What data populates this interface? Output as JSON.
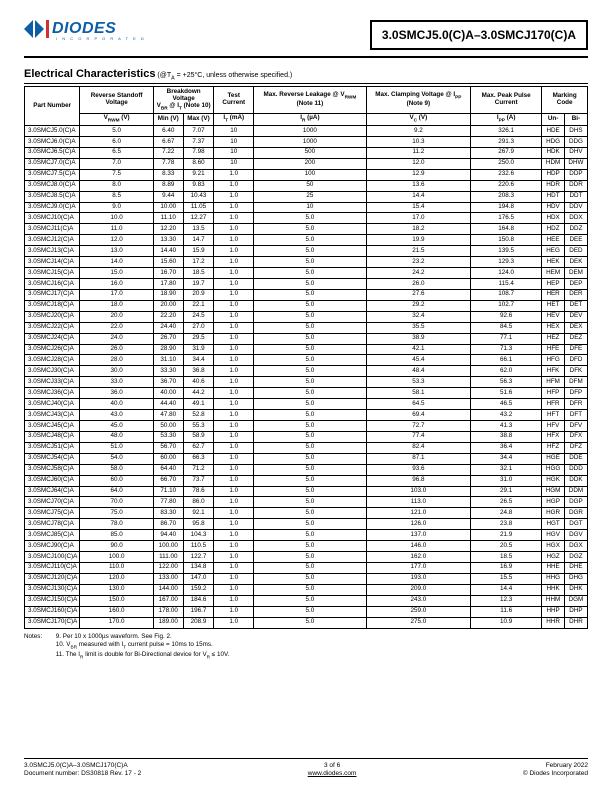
{
  "header": {
    "logo_text": "DIODES",
    "logo_sub": "I N C O R P O R A T E D",
    "logo_color": "#0d5ea6",
    "title_box": "3.0SMCJ5.0(C)A–3.0SMCJ170(C)A"
  },
  "section": {
    "title": "Electrical Characteristics",
    "condition": " (@T",
    "condition_sub": "A",
    "condition_rest": " = +25°C, unless otherwise specified.)"
  },
  "columns_r1": [
    "Part Number",
    "Reverse Standoff Voltage",
    "Breakdown Voltage",
    "V<sub>BR</sub> @ I<sub>T</sub> (Note 10)",
    "Test Current",
    "Max. Reverse Leakage @ V<sub>RWM</sub> (Note 11)",
    "Max. Clamping Voltage @ I<sub>PP</sub> (Note 9)",
    "Max. Peak Pulse Current",
    "Marking Code"
  ],
  "columns_r2": [
    "V<sub>RWM</sub> (V)",
    "Min (V)",
    "Max (V)",
    "I<sub>T</sub> (mA)",
    "I<sub>R</sub> (µA)",
    "V<sub>C</sub> (V)",
    "I<sub>PP</sub> (A)",
    "Un-",
    "Bi-"
  ],
  "rows": [
    [
      "3.0SMCJ5.0(C)A",
      "5.0",
      "6.40",
      "7.07",
      "10",
      "1000",
      "9.2",
      "326.1",
      "HDE",
      "DHS"
    ],
    [
      "3.0SMCJ6.0(C)A",
      "6.0",
      "6.67",
      "7.37",
      "10",
      "1000",
      "10.3",
      "291.3",
      "HDG",
      "DDG"
    ],
    [
      "3.0SMCJ6.5(C)A",
      "6.5",
      "7.22",
      "7.98",
      "10",
      "500",
      "11.2",
      "267.9",
      "HDK",
      "DHV"
    ],
    [
      "3.0SMCJ7.0(C)A",
      "7.0",
      "7.78",
      "8.60",
      "10",
      "200",
      "12.0",
      "250.0",
      "HDM",
      "DHW"
    ],
    [
      "3.0SMCJ7.5(C)A",
      "7.5",
      "8.33",
      "9.21",
      "1.0",
      "100",
      "12.9",
      "232.6",
      "HDP",
      "DDP"
    ],
    [
      "3.0SMCJ8.0(C)A",
      "8.0",
      "8.89",
      "9.83",
      "1.0",
      "50",
      "13.6",
      "220.6",
      "HDR",
      "DDR"
    ],
    [
      "3.0SMCJ8.5(C)A",
      "8.5",
      "9.44",
      "10.43",
      "1.0",
      "25",
      "14.4",
      "208.3",
      "HDT",
      "DDT"
    ],
    [
      "3.0SMCJ9.0(C)A",
      "9.0",
      "10.00",
      "11.05",
      "1.0",
      "10",
      "15.4",
      "194.8",
      "HDV",
      "DDV"
    ],
    [
      "3.0SMCJ10(C)A",
      "10.0",
      "11.10",
      "12.27",
      "1.0",
      "5.0",
      "17.0",
      "176.5",
      "HDX",
      "DDX"
    ],
    [
      "3.0SMCJ11(C)A",
      "11.0",
      "12.20",
      "13.5",
      "1.0",
      "5.0",
      "18.2",
      "164.8",
      "HDZ",
      "DDZ"
    ],
    [
      "3.0SMCJ12(C)A",
      "12.0",
      "13.30",
      "14.7",
      "1.0",
      "5.0",
      "19.9",
      "150.8",
      "HEE",
      "DEE"
    ],
    [
      "3.0SMCJ13(C)A",
      "13.0",
      "14.40",
      "15.9",
      "1.0",
      "5.0",
      "21.5",
      "139.5",
      "HEG",
      "DED"
    ],
    [
      "3.0SMCJ14(C)A",
      "14.0",
      "15.60",
      "17.2",
      "1.0",
      "5.0",
      "23.2",
      "129.3",
      "HEK",
      "DEK"
    ],
    [
      "3.0SMCJ15(C)A",
      "15.0",
      "16.70",
      "18.5",
      "1.0",
      "5.0",
      "24.2",
      "124.0",
      "HEM",
      "DEM"
    ],
    [
      "3.0SMCJ16(C)A",
      "16.0",
      "17.80",
      "19.7",
      "1.0",
      "5.0",
      "26.0",
      "115.4",
      "HEP",
      "DEP"
    ],
    [
      "3.0SMCJ17(C)A",
      "17.0",
      "18.90",
      "20.9",
      "1.0",
      "5.0",
      "27.6",
      "108.7",
      "HER",
      "DER"
    ],
    [
      "3.0SMCJ18(C)A",
      "18.0",
      "20.00",
      "22.1",
      "1.0",
      "5.0",
      "29.2",
      "102.7",
      "HET",
      "DET"
    ],
    [
      "3.0SMCJ20(C)A",
      "20.0",
      "22.20",
      "24.5",
      "1.0",
      "5.0",
      "32.4",
      "92.6",
      "HEV",
      "DEV"
    ],
    [
      "3.0SMCJ22(C)A",
      "22.0",
      "24.40",
      "27.0",
      "1.0",
      "5.0",
      "35.5",
      "84.5",
      "HEX",
      "DEX"
    ],
    [
      "3.0SMCJ24(C)A",
      "24.0",
      "26.70",
      "29.5",
      "1.0",
      "5.0",
      "38.9",
      "77.1",
      "HEZ",
      "DEZ"
    ],
    [
      "3.0SMCJ26(C)A",
      "26.0",
      "28.90",
      "31.9",
      "1.0",
      "5.0",
      "42.1",
      "71.3",
      "HFE",
      "DFE"
    ],
    [
      "3.0SMCJ28(C)A",
      "28.0",
      "31.10",
      "34.4",
      "1.0",
      "5.0",
      "45.4",
      "66.1",
      "HFG",
      "DFD"
    ],
    [
      "3.0SMCJ30(C)A",
      "30.0",
      "33.30",
      "36.8",
      "1.0",
      "5.0",
      "48.4",
      "62.0",
      "HFK",
      "DFK"
    ],
    [
      "3.0SMCJ33(C)A",
      "33.0",
      "36.70",
      "40.6",
      "1.0",
      "5.0",
      "53.3",
      "56.3",
      "HFM",
      "DFM"
    ],
    [
      "3.0SMCJ36(C)A",
      "36.0",
      "40.00",
      "44.2",
      "1.0",
      "5.0",
      "58.1",
      "51.6",
      "HFP",
      "DFP"
    ],
    [
      "3.0SMCJ40(C)A",
      "40.0",
      "44.40",
      "49.1",
      "1.0",
      "5.0",
      "64.5",
      "46.5",
      "HFR",
      "DFR"
    ],
    [
      "3.0SMCJ43(C)A",
      "43.0",
      "47.80",
      "52.8",
      "1.0",
      "5.0",
      "69.4",
      "43.2",
      "HFT",
      "DFT"
    ],
    [
      "3.0SMCJ45(C)A",
      "45.0",
      "50.00",
      "55.3",
      "1.0",
      "5.0",
      "72.7",
      "41.3",
      "HFV",
      "DFV"
    ],
    [
      "3.0SMCJ48(C)A",
      "48.0",
      "53.30",
      "58.9",
      "1.0",
      "5.0",
      "77.4",
      "38.8",
      "HFX",
      "DFX"
    ],
    [
      "3.0SMCJ51(C)A",
      "51.0",
      "56.70",
      "62.7",
      "1.0",
      "5.0",
      "82.4",
      "36.4",
      "HFZ",
      "DFZ"
    ],
    [
      "3.0SMCJ54(C)A",
      "54.0",
      "60.00",
      "66.3",
      "1.0",
      "5.0",
      "87.1",
      "34.4",
      "HGE",
      "DDE"
    ],
    [
      "3.0SMCJ58(C)A",
      "58.0",
      "64.40",
      "71.2",
      "1.0",
      "5.0",
      "93.6",
      "32.1",
      "HGG",
      "DDD"
    ],
    [
      "3.0SMCJ60(C)A",
      "60.0",
      "66.70",
      "73.7",
      "1.0",
      "5.0",
      "96.8",
      "31.0",
      "HGK",
      "DDK"
    ],
    [
      "3.0SMCJ64(C)A",
      "64.0",
      "71.10",
      "78.6",
      "1.0",
      "5.0",
      "103.0",
      "29.1",
      "HGM",
      "DDM"
    ],
    [
      "3.0SMCJ70(C)A",
      "70.0",
      "77.80",
      "86.0",
      "1.0",
      "5.0",
      "113.0",
      "26.5",
      "HGP",
      "DGP"
    ],
    [
      "3.0SMCJ75(C)A",
      "75.0",
      "83.30",
      "92.1",
      "1.0",
      "5.0",
      "121.0",
      "24.8",
      "HGR",
      "DGR"
    ],
    [
      "3.0SMCJ78(C)A",
      "78.0",
      "86.70",
      "95.8",
      "1.0",
      "5.0",
      "126.0",
      "23.8",
      "HGT",
      "DGT"
    ],
    [
      "3.0SMCJ85(C)A",
      "85.0",
      "94.40",
      "104.3",
      "1.0",
      "5.0",
      "137.0",
      "21.9",
      "HGV",
      "DGV"
    ],
    [
      "3.0SMCJ90(C)A",
      "90.0",
      "100.00",
      "110.5",
      "1.0",
      "5.0",
      "146.0",
      "20.5",
      "HGX",
      "DGX"
    ],
    [
      "3.0SMCJ100(C)A",
      "100.0",
      "111.00",
      "122.7",
      "1.0",
      "5.0",
      "162.0",
      "18.5",
      "HGZ",
      "DGZ"
    ],
    [
      "3.0SMCJ110(C)A",
      "110.0",
      "122.00",
      "134.8",
      "1.0",
      "5.0",
      "177.0",
      "16.9",
      "HHE",
      "DHE"
    ],
    [
      "3.0SMCJ120(C)A",
      "120.0",
      "133.00",
      "147.0",
      "1.0",
      "5.0",
      "193.0",
      "15.5",
      "HHG",
      "DHG"
    ],
    [
      "3.0SMCJ130(C)A",
      "130.0",
      "144.00",
      "159.2",
      "1.0",
      "5.0",
      "209.0",
      "14.4",
      "HHK",
      "DHK"
    ],
    [
      "3.0SMCJ150(C)A",
      "150.0",
      "167.00",
      "184.6",
      "1.0",
      "5.0",
      "243.0",
      "12.3",
      "HHM",
      "DGM"
    ],
    [
      "3.0SMCJ160(C)A",
      "160.0",
      "178.00",
      "196.7",
      "1.0",
      "5.0",
      "259.0",
      "11.6",
      "HHP",
      "DHP"
    ],
    [
      "3.0SMCJ170(C)A",
      "170.0",
      "189.00",
      "208.9",
      "1.0",
      "5.0",
      "275.0",
      "10.9",
      "HHR",
      "DHR"
    ]
  ],
  "notes": {
    "label": "Notes:",
    "items": [
      "9. Per 10 x 1000µs waveform. See Fig. 2.",
      "10. V<sub>BR</sub> measured with I<sub>T</sub> current pulse = 10ms to 15ms.",
      "11. The I<sub>R</sub> limit is double for Bi-Directional device for V<sub>R</sub> ≤ 10V."
    ]
  },
  "footer": {
    "left1": "3.0SMCJ5.0(C)A–3.0SMCJ170(C)A",
    "left2": "Document number: DS30818 Rev. 17 - 2",
    "center1": "3 of 6",
    "center2": "www.diodes.com",
    "right1": "February 2022",
    "right2": "© Diodes Incorporated"
  }
}
